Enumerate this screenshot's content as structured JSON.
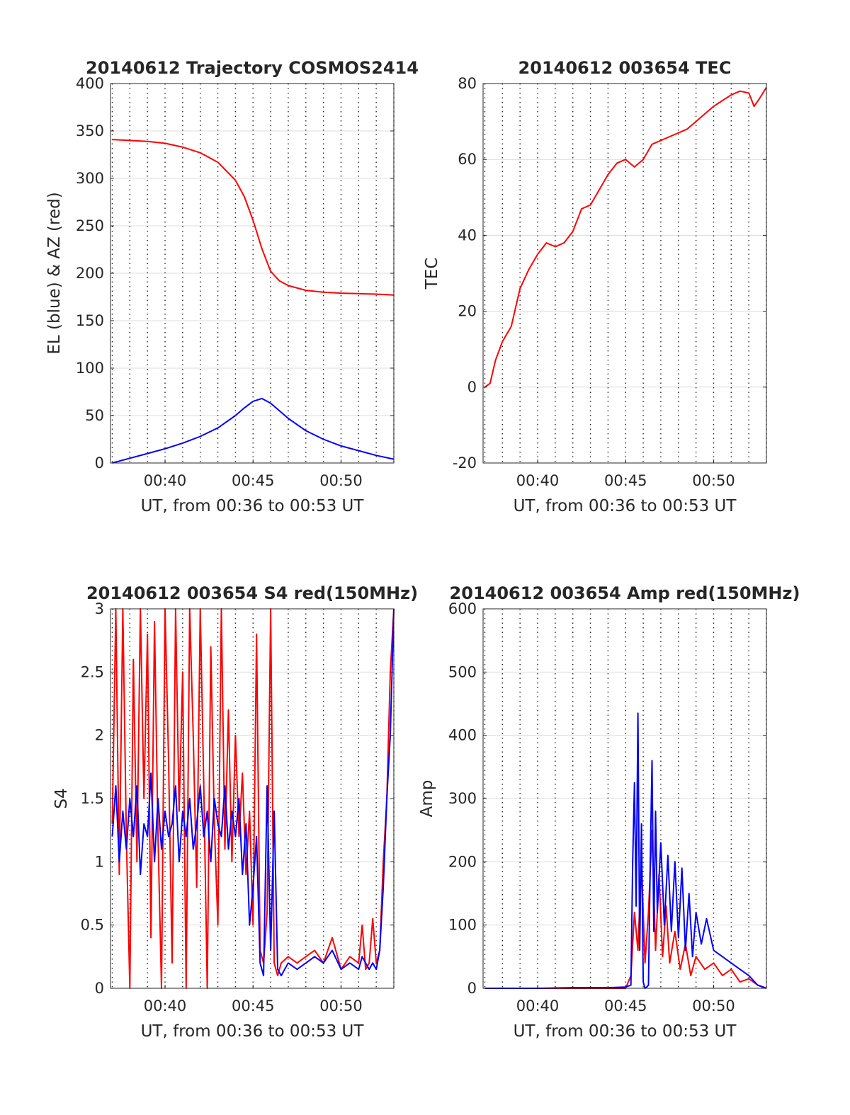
{
  "chart_data": [
    {
      "id": "trajectory",
      "type": "line",
      "title": "20140612 Trajectory COSMOS2414",
      "xlabel": "UT, from 00:36 to 00:53 UT",
      "ylabel": "EL (blue) & AZ (red)",
      "xlim": [
        36.9,
        53
      ],
      "ylim": [
        0,
        400
      ],
      "xticks": [
        40,
        45,
        50
      ],
      "xtick_labels": [
        "00:40",
        "00:45",
        "00:50"
      ],
      "yticks": [
        0,
        50,
        100,
        150,
        200,
        250,
        300,
        350,
        400
      ],
      "ytick_labels": [
        "0",
        "50",
        "100",
        "150",
        "200",
        "250",
        "300",
        "350",
        "400"
      ],
      "grid": "dotted vertical every 1 minute, solid horizontal at y ticks",
      "series": [
        {
          "color": "#ff0000",
          "x": [
            37,
            38,
            39,
            40,
            41,
            42,
            43,
            44,
            44.5,
            45,
            45.5,
            46,
            46.5,
            47,
            48,
            49,
            50,
            51,
            52,
            53
          ],
          "y": [
            341,
            340,
            339,
            337,
            333,
            327,
            317,
            298,
            281,
            256,
            226,
            202,
            192,
            187,
            182,
            180,
            179,
            178.5,
            178,
            177
          ]
        },
        {
          "color": "#0000ff",
          "x": [
            37,
            38,
            39,
            40,
            41,
            42,
            43,
            44,
            44.5,
            45,
            45.5,
            46,
            46.5,
            47,
            48,
            49,
            50,
            51,
            52,
            53
          ],
          "y": [
            0,
            5,
            10,
            15,
            21,
            28,
            37,
            50,
            58,
            65,
            68,
            63,
            55,
            47,
            34,
            25,
            18,
            13,
            8,
            4
          ]
        }
      ]
    },
    {
      "id": "tec",
      "type": "line",
      "title": "20140612 003654 TEC",
      "xlabel": "UT, from 00:36 to 00:53 UT",
      "ylabel": "TEC",
      "xlim": [
        36.9,
        53
      ],
      "ylim": [
        -20,
        80
      ],
      "xticks": [
        40,
        45,
        50
      ],
      "xtick_labels": [
        "00:40",
        "00:45",
        "00:50"
      ],
      "yticks": [
        -20,
        0,
        20,
        40,
        60,
        80
      ],
      "ytick_labels": [
        "-20",
        "0",
        "20",
        "40",
        "60",
        "80"
      ],
      "grid": "dotted vertical every 1 minute, solid horizontal at y ticks",
      "series": [
        {
          "color": "#ff0000",
          "x": [
            37,
            37.3,
            37.6,
            38,
            38.5,
            39,
            39.5,
            40,
            40.5,
            41,
            41.5,
            42,
            42.5,
            43,
            43.5,
            44,
            44.5,
            45,
            45.5,
            46,
            46.5,
            47,
            47.5,
            48,
            48.5,
            49,
            49.5,
            50,
            50.5,
            51,
            51.5,
            52,
            52.3,
            52.6,
            53
          ],
          "y": [
            0,
            1,
            7,
            12,
            16,
            26,
            31,
            35,
            38,
            37,
            38,
            41,
            47,
            48,
            52,
            56,
            59,
            60,
            58,
            60,
            64,
            65,
            66,
            67,
            68,
            70,
            72,
            74,
            75.5,
            77,
            78,
            77.5,
            74,
            76,
            79
          ]
        }
      ]
    },
    {
      "id": "s4",
      "type": "line",
      "title": "20140612 003654 S4 red(150MHz)",
      "xlabel": "UT, from 00:36 to 00:53 UT",
      "ylabel": "S4",
      "xlim": [
        36.9,
        53
      ],
      "ylim": [
        0,
        3
      ],
      "xticks": [
        40,
        45,
        50
      ],
      "xtick_labels": [
        "00:40",
        "00:45",
        "00:50"
      ],
      "yticks": [
        0,
        0.5,
        1,
        1.5,
        2,
        2.5,
        3
      ],
      "ytick_labels": [
        "0",
        "0.5",
        "1",
        "1.5",
        "2",
        "2.5",
        "3"
      ],
      "grid": "dotted vertical every 1 minute, solid horizontal at y ticks",
      "series": [
        {
          "color": "#ff0000",
          "x": [
            37,
            37.2,
            37.4,
            37.6,
            37.8,
            38,
            38.2,
            38.4,
            38.6,
            38.8,
            39,
            39.2,
            39.4,
            39.6,
            39.8,
            40,
            40.2,
            40.4,
            40.6,
            40.8,
            41,
            41.2,
            41.4,
            41.6,
            41.8,
            42,
            42.2,
            42.4,
            42.6,
            42.8,
            43,
            43.2,
            43.4,
            43.6,
            43.8,
            44,
            44.2,
            44.4,
            44.6,
            44.8,
            45,
            45.2,
            45.4,
            45.6,
            45.8,
            46,
            46.2,
            46.4,
            46.6,
            47,
            47.5,
            48,
            48.5,
            49,
            49.5,
            50,
            50.5,
            51,
            51.2,
            51.4,
            51.6,
            51.8,
            52,
            52.2,
            52.4,
            52.6,
            52.8,
            53
          ],
          "y": [
            1.3,
            3.0,
            0.9,
            3.0,
            1.2,
            0.0,
            2.6,
            1.0,
            3.0,
            1.5,
            2.8,
            0.4,
            2.9,
            1.2,
            0.0,
            3.0,
            1.8,
            0.2,
            3.0,
            1.4,
            2.5,
            0.0,
            3.0,
            2.0,
            0.8,
            3.0,
            1.6,
            0.0,
            2.7,
            1.3,
            0.5,
            3.0,
            1.1,
            2.2,
            1.0,
            2.0,
            1.2,
            1.7,
            0.9,
            1.4,
            0.5,
            2.8,
            0.3,
            0.2,
            0.6,
            3.0,
            0.2,
            0.1,
            0.2,
            0.25,
            0.2,
            0.25,
            0.3,
            0.2,
            0.4,
            0.15,
            0.25,
            0.2,
            0.5,
            0.15,
            0.2,
            0.55,
            0.2,
            0.3,
            1.0,
            1.5,
            2.5,
            3.0
          ]
        },
        {
          "color": "#0000ff",
          "x": [
            37,
            37.2,
            37.4,
            37.6,
            37.8,
            38,
            38.2,
            38.4,
            38.6,
            38.8,
            39,
            39.2,
            39.4,
            39.6,
            39.8,
            40,
            40.2,
            40.4,
            40.6,
            40.8,
            41,
            41.2,
            41.4,
            41.6,
            41.8,
            42,
            42.2,
            42.4,
            42.6,
            42.8,
            43,
            43.2,
            43.4,
            43.6,
            43.8,
            44,
            44.2,
            44.4,
            44.6,
            44.8,
            45,
            45.2,
            45.4,
            45.6,
            45.8,
            46,
            46.2,
            46.4,
            46.6,
            47,
            47.5,
            48,
            48.5,
            49,
            49.5,
            50,
            50.5,
            51,
            51.2,
            51.4,
            51.6,
            51.8,
            52,
            52.2,
            52.4,
            52.6,
            52.8,
            53
          ],
          "y": [
            1.2,
            1.6,
            1.0,
            1.4,
            1.1,
            1.5,
            1.2,
            1.6,
            0.9,
            1.3,
            1.2,
            1.7,
            1.0,
            1.5,
            1.1,
            1.4,
            1.2,
            1.3,
            1.6,
            1.0,
            1.4,
            1.2,
            1.5,
            1.1,
            1.3,
            1.6,
            1.2,
            1.4,
            1.0,
            1.5,
            1.3,
            1.2,
            1.6,
            1.1,
            1.4,
            1.2,
            1.5,
            0.9,
            1.3,
            0.5,
            0.8,
            1.2,
            0.2,
            0.1,
            1.6,
            0.3,
            1.4,
            0.15,
            0.1,
            0.2,
            0.15,
            0.2,
            0.25,
            0.2,
            0.3,
            0.15,
            0.2,
            0.15,
            0.25,
            0.2,
            0.15,
            0.2,
            0.15,
            0.3,
            0.8,
            1.5,
            2.0,
            3.0
          ]
        }
      ]
    },
    {
      "id": "amp",
      "type": "line",
      "title": "20140612 003654 Amp red(150MHz)",
      "xlabel": "UT, from 00:36 to 00:53 UT",
      "ylabel": "Amp",
      "xlim": [
        36.9,
        53
      ],
      "ylim": [
        0,
        600
      ],
      "xticks": [
        40,
        45,
        50
      ],
      "xtick_labels": [
        "00:40",
        "00:45",
        "00:50"
      ],
      "yticks": [
        0,
        100,
        200,
        300,
        400,
        500,
        600
      ],
      "ytick_labels": [
        "0",
        "100",
        "200",
        "300",
        "400",
        "500",
        "600"
      ],
      "grid": "dotted vertical every 1 minute, solid horizontal at y ticks",
      "series": [
        {
          "color": "#ff0000",
          "x": [
            37,
            42,
            45,
            45.3,
            45.5,
            45.7,
            45.9,
            46.1,
            46.3,
            46.5,
            46.7,
            46.9,
            47.1,
            47.3,
            47.5,
            47.8,
            48.1,
            48.4,
            48.7,
            49,
            49.5,
            50,
            50.5,
            51,
            51.5,
            52,
            52.5,
            53
          ],
          "y": [
            0,
            0,
            0,
            20,
            120,
            60,
            200,
            40,
            120,
            250,
            60,
            180,
            50,
            130,
            40,
            90,
            30,
            70,
            20,
            50,
            30,
            40,
            20,
            30,
            10,
            15,
            5,
            0
          ]
        },
        {
          "color": "#0000ff",
          "x": [
            37,
            40,
            42,
            44,
            45,
            45.3,
            45.4,
            45.5,
            45.6,
            45.7,
            45.8,
            45.9,
            46,
            46.1,
            46.2,
            46.3,
            46.4,
            46.5,
            46.6,
            46.7,
            46.8,
            47,
            47.2,
            47.4,
            47.6,
            47.8,
            48,
            48.2,
            48.4,
            48.6,
            48.8,
            49,
            49.3,
            49.6,
            50,
            50.5,
            51,
            51.5,
            52,
            52.5,
            53
          ],
          "y": [
            0,
            0,
            1,
            1,
            2,
            5,
            200,
            325,
            130,
            435,
            60,
            260,
            10,
            0,
            2,
            5,
            200,
            360,
            90,
            280,
            120,
            230,
            100,
            210,
            90,
            200,
            80,
            190,
            60,
            150,
            50,
            120,
            70,
            110,
            60,
            50,
            40,
            30,
            20,
            5,
            0
          ]
        }
      ]
    }
  ]
}
